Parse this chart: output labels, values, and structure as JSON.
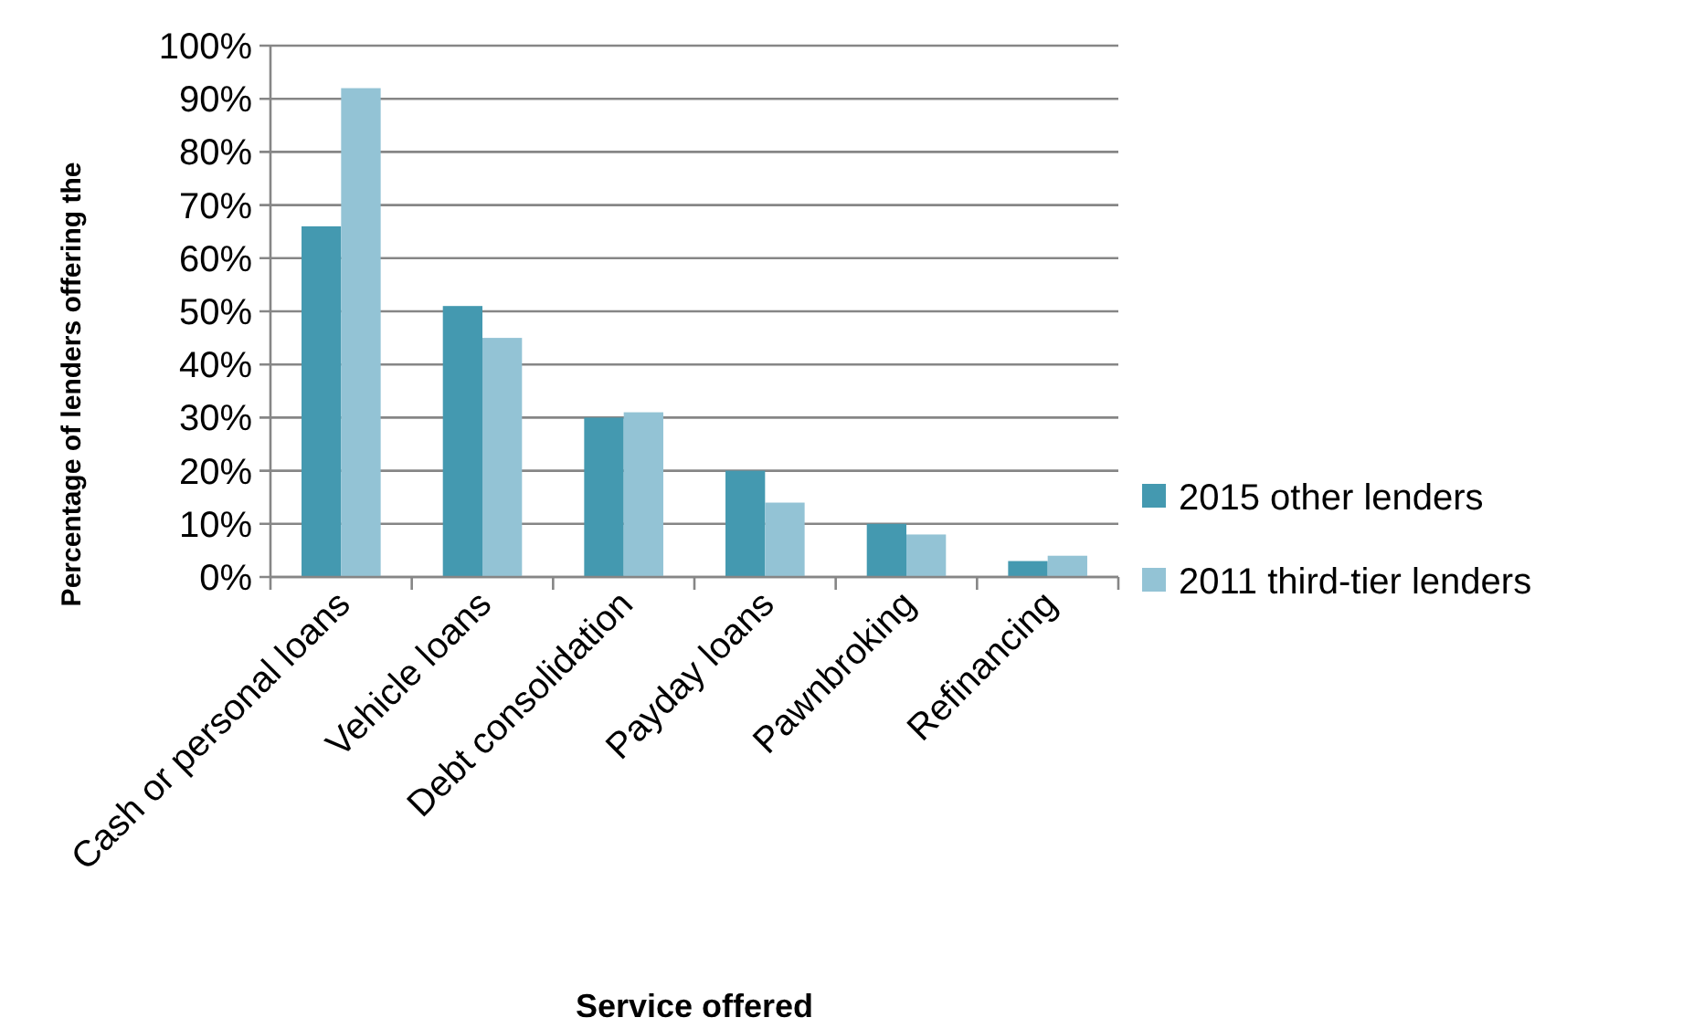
{
  "chart_data": {
    "type": "bar",
    "xlabel": "Service offered",
    "ylabel": "Percentage of lenders offering the",
    "categories": [
      "Cash or personal loans",
      "Vehicle loans",
      "Debt consolidation",
      "Payday loans",
      "Pawnbroking",
      "Refinancing"
    ],
    "series": [
      {
        "name": "2015 other lenders",
        "color": "#4499b0",
        "values": [
          66,
          51,
          30,
          20,
          10,
          3
        ]
      },
      {
        "name": "2011 third-tier lenders",
        "color": "#93c3d5",
        "values": [
          92,
          45,
          31,
          14,
          8,
          4
        ]
      }
    ],
    "ylim": [
      0,
      100
    ],
    "yticks": [
      {
        "value": 0,
        "label": "0%"
      },
      {
        "value": 10,
        "label": "10%"
      },
      {
        "value": 20,
        "label": "20%"
      },
      {
        "value": 30,
        "label": "30%"
      },
      {
        "value": 40,
        "label": "40%"
      },
      {
        "value": 50,
        "label": "50%"
      },
      {
        "value": 60,
        "label": "60%"
      },
      {
        "value": 70,
        "label": "70%"
      },
      {
        "value": 80,
        "label": "80%"
      },
      {
        "value": 90,
        "label": "90%"
      },
      {
        "value": 100,
        "label": "100%"
      }
    ],
    "grid": "y",
    "legend": "right"
  }
}
